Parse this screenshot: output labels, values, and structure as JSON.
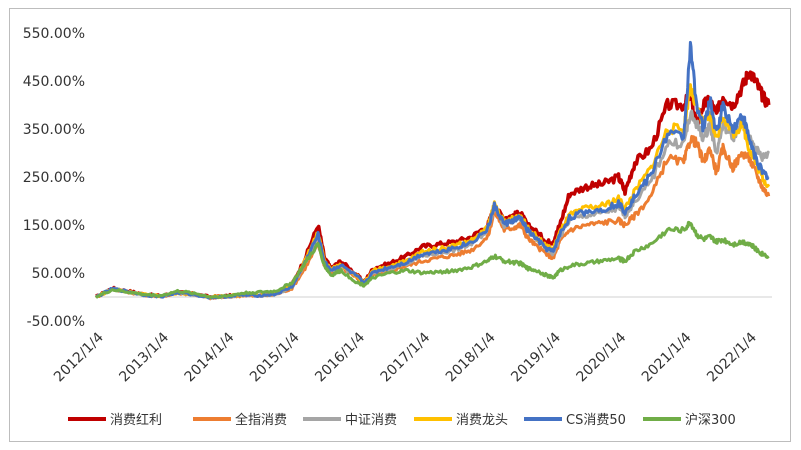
{
  "chart_data": {
    "type": "line",
    "title": "",
    "xlabel": "",
    "ylabel": "",
    "ylim": [
      -50,
      550
    ],
    "y_ticks": [
      "550.00%",
      "450.00%",
      "350.00%",
      "250.00%",
      "150.00%",
      "50.00%",
      "-50.00%"
    ],
    "x_ticks": [
      "2012/1/4",
      "2013/1/4",
      "2014/1/4",
      "2015/1/4",
      "2016/1/4",
      "2017/1/4",
      "2018/1/4",
      "2019/1/4",
      "2020/1/4",
      "2021/1/4",
      "2022/1/4"
    ],
    "grid": false,
    "legend_position": "bottom",
    "x": [
      2012.0,
      2012.25,
      2012.5,
      2012.75,
      2013.0,
      2013.25,
      2013.5,
      2013.75,
      2014.0,
      2014.25,
      2014.5,
      2014.75,
      2015.0,
      2015.2,
      2015.4,
      2015.5,
      2015.6,
      2015.75,
      2016.0,
      2016.1,
      2016.25,
      2016.5,
      2016.75,
      2017.0,
      2017.25,
      2017.5,
      2017.75,
      2018.0,
      2018.1,
      2018.25,
      2018.4,
      2018.5,
      2018.6,
      2018.75,
      2018.9,
      2019.0,
      2019.1,
      2019.25,
      2019.5,
      2019.75,
      2020.0,
      2020.1,
      2020.25,
      2020.5,
      2020.75,
      2021.0,
      2021.1,
      2021.2,
      2021.3,
      2021.4,
      2021.5,
      2021.6,
      2021.75,
      2021.9,
      2022.0,
      2022.1,
      2022.2,
      2022.3
    ],
    "series": [
      {
        "name": "消费红利",
        "color": "#c00000",
        "values": [
          0,
          18,
          12,
          5,
          2,
          10,
          6,
          0,
          2,
          5,
          4,
          8,
          25,
          80,
          150,
          80,
          60,
          75,
          45,
          30,
          60,
          70,
          85,
          105,
          110,
          115,
          125,
          150,
          185,
          165,
          170,
          175,
          150,
          135,
          115,
          115,
          150,
          215,
          230,
          235,
          250,
          220,
          280,
          310,
          400,
          400,
          420,
          360,
          400,
          410,
          380,
          420,
          400,
          440,
          470,
          450,
          420,
          400
        ]
      },
      {
        "name": "全指消费",
        "color": "#ed7d31",
        "values": [
          0,
          16,
          10,
          4,
          1,
          8,
          5,
          -2,
          0,
          3,
          2,
          5,
          18,
          60,
          110,
          65,
          50,
          60,
          40,
          25,
          45,
          55,
          65,
          75,
          82,
          88,
          98,
          125,
          180,
          140,
          145,
          150,
          125,
          105,
          90,
          80,
          115,
          140,
          150,
          155,
          160,
          150,
          170,
          210,
          290,
          280,
          330,
          320,
          280,
          310,
          260,
          310,
          270,
          300,
          290,
          260,
          230,
          210
        ]
      },
      {
        "name": "中证消费",
        "color": "#a5a5a5",
        "values": [
          0,
          17,
          11,
          4,
          1,
          9,
          5,
          -1,
          1,
          4,
          3,
          6,
          20,
          70,
          125,
          70,
          55,
          65,
          42,
          28,
          50,
          60,
          70,
          85,
          92,
          98,
          110,
          140,
          190,
          150,
          160,
          165,
          140,
          120,
          100,
          90,
          125,
          160,
          170,
          175,
          185,
          170,
          200,
          240,
          320,
          320,
          380,
          360,
          330,
          360,
          300,
          360,
          330,
          370,
          330,
          310,
          290,
          300
        ]
      },
      {
        "name": "消费龙头",
        "color": "#ffc000",
        "values": [
          0,
          17,
          11,
          5,
          2,
          9,
          6,
          0,
          2,
          5,
          4,
          7,
          22,
          75,
          135,
          75,
          57,
          68,
          44,
          29,
          55,
          65,
          75,
          95,
          100,
          108,
          118,
          145,
          195,
          155,
          165,
          170,
          145,
          125,
          105,
          100,
          135,
          170,
          185,
          190,
          205,
          185,
          220,
          270,
          350,
          350,
          440,
          390,
          360,
          380,
          330,
          380,
          340,
          360,
          310,
          280,
          250,
          230
        ]
      },
      {
        "name": "CS消费50",
        "color": "#4472c4",
        "values": [
          0,
          17,
          11,
          4,
          1,
          9,
          5,
          -1,
          1,
          4,
          3,
          6,
          21,
          72,
          130,
          72,
          56,
          66,
          43,
          28,
          52,
          62,
          72,
          90,
          95,
          103,
          114,
          142,
          190,
          152,
          160,
          165,
          140,
          120,
          100,
          95,
          130,
          165,
          178,
          182,
          195,
          178,
          210,
          255,
          340,
          335,
          520,
          400,
          350,
          410,
          340,
          400,
          350,
          380,
          330,
          290,
          260,
          250
        ]
      },
      {
        "name": "沪深300",
        "color": "#70ad47",
        "values": [
          0,
          15,
          10,
          5,
          3,
          12,
          8,
          0,
          2,
          8,
          10,
          12,
          30,
          70,
          110,
          65,
          45,
          55,
          30,
          25,
          40,
          50,
          55,
          50,
          52,
          55,
          62,
          75,
          85,
          75,
          72,
          70,
          60,
          55,
          45,
          40,
          55,
          65,
          70,
          75,
          80,
          75,
          95,
          110,
          140,
          140,
          155,
          130,
          120,
          125,
          115,
          120,
          110,
          115,
          112,
          100,
          90,
          85
        ]
      }
    ]
  }
}
